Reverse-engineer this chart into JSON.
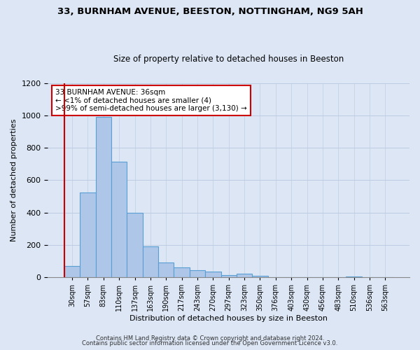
{
  "title": "33, BURNHAM AVENUE, BEESTON, NOTTINGHAM, NG9 5AH",
  "subtitle": "Size of property relative to detached houses in Beeston",
  "xlabel": "Distribution of detached houses by size in Beeston",
  "ylabel": "Number of detached properties",
  "bar_color": "#aec6e8",
  "bar_edge_color": "#5a9fd4",
  "background_color": "#dce6f5",
  "plot_background": "#dce6f5",
  "grid_color": "#b8c8e0",
  "annotation_line1": "33 BURNHAM AVENUE: 36sqm",
  "annotation_line2": "← <1% of detached houses are smaller (4)",
  "annotation_line3": ">99% of semi-detached houses are larger (3,130) →",
  "annotation_box_color": "#ffffff",
  "annotation_box_edge": "#cc0000",
  "categories": [
    "30sqm",
    "57sqm",
    "83sqm",
    "110sqm",
    "137sqm",
    "163sqm",
    "190sqm",
    "217sqm",
    "243sqm",
    "270sqm",
    "297sqm",
    "323sqm",
    "350sqm",
    "376sqm",
    "403sqm",
    "430sqm",
    "456sqm",
    "483sqm",
    "510sqm",
    "536sqm",
    "563sqm"
  ],
  "values": [
    70,
    525,
    990,
    715,
    400,
    190,
    90,
    60,
    45,
    35,
    15,
    20,
    8,
    2,
    1,
    1,
    1,
    1,
    5,
    0,
    2
  ],
  "ylim": [
    0,
    1200
  ],
  "yticks": [
    0,
    200,
    400,
    600,
    800,
    1000,
    1200
  ],
  "footer1": "Contains HM Land Registry data © Crown copyright and database right 2024.",
  "footer2": "Contains public sector information licensed under the Open Government Licence v3.0.",
  "figsize": [
    6.0,
    5.0
  ],
  "dpi": 100
}
